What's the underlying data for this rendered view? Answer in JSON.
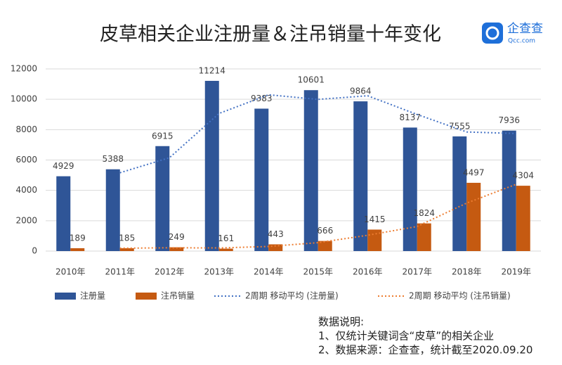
{
  "chart_data": {
    "type": "bar",
    "title": "皮草相关企业注册量＆注吊销量十年变化",
    "categories": [
      "2010年",
      "2011年",
      "2012年",
      "2013年",
      "2014年",
      "2015年",
      "2016年",
      "2017年",
      "2018年",
      "2019年"
    ],
    "series": [
      {
        "name": "注册量",
        "type": "bar",
        "color": "#2f5597",
        "values": [
          4929,
          5388,
          6915,
          11214,
          9383,
          10601,
          9864,
          8137,
          7555,
          7936
        ]
      },
      {
        "name": "注吊销量",
        "type": "bar",
        "color": "#c55a11",
        "values": [
          189,
          185,
          249,
          161,
          443,
          666,
          1415,
          1824,
          4497,
          4304
        ]
      },
      {
        "name": "2周期 移动平均 (注册量)",
        "type": "line",
        "color": "#4472c4",
        "values": [
          null,
          5158.5,
          6151.5,
          9064.5,
          10298.5,
          9992,
          10232.5,
          9000.5,
          7846,
          7745.5
        ]
      },
      {
        "name": "2周期 移动平均 (注吊销量)",
        "type": "line",
        "color": "#ed7d31",
        "values": [
          null,
          187,
          217,
          205,
          302,
          554.5,
          1040.5,
          1619.5,
          3160.5,
          4400.5
        ]
      }
    ],
    "ylim": [
      0,
      12000
    ],
    "yticks": [
      0,
      2000,
      4000,
      6000,
      8000,
      10000,
      12000
    ],
    "grid": true,
    "legend": "bottom"
  },
  "logo": {
    "name": "企查查",
    "url": "Qcc.com"
  },
  "notes": [
    "数据说明:",
    "1、仅统计关键词含“皮草”的相关企业",
    "2、数据来源：企查查，统计截至2020.09.20"
  ]
}
